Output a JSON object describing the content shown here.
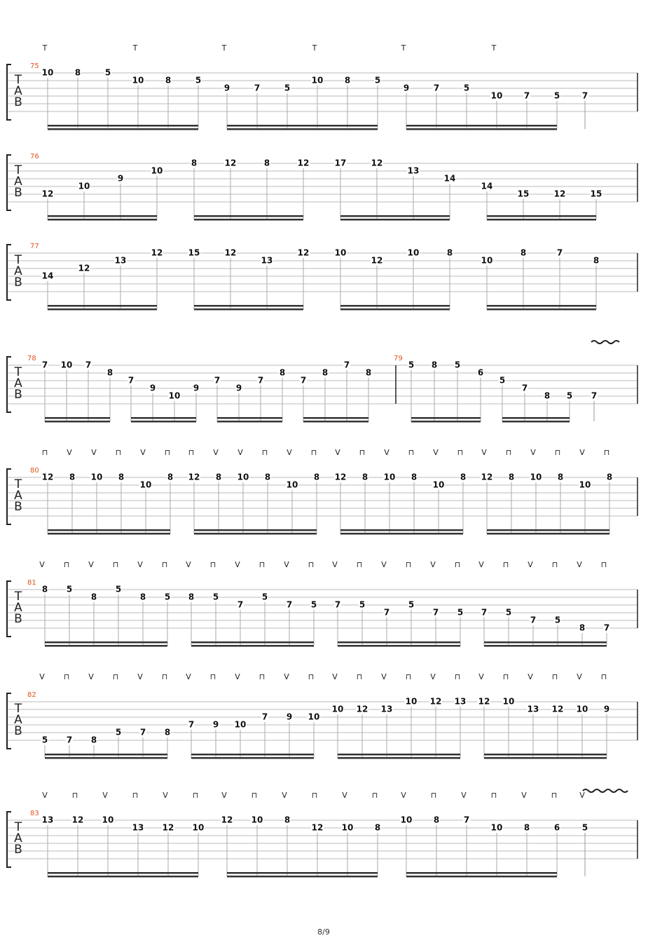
{
  "clef": [
    "T",
    "A",
    "B"
  ],
  "page_number": "8/9",
  "systems": [
    {
      "groups": [
        {
          "measure": "75",
          "notes": [
            {
              "fret": "10",
              "string": 1,
              "above": "T"
            },
            {
              "fret": "8",
              "string": 1
            },
            {
              "fret": "5",
              "string": 1
            },
            {
              "fret": "10",
              "string": 2,
              "above": "T"
            },
            {
              "fret": "8",
              "string": 2
            },
            {
              "fret": "5",
              "string": 2
            }
          ]
        },
        {
          "notes": [
            {
              "fret": "9",
              "string": 3,
              "above": "T"
            },
            {
              "fret": "7",
              "string": 3
            },
            {
              "fret": "5",
              "string": 3
            },
            {
              "fret": "10",
              "string": 2,
              "above": "T"
            },
            {
              "fret": "8",
              "string": 2
            },
            {
              "fret": "5",
              "string": 2
            }
          ]
        },
        {
          "notes": [
            {
              "fret": "9",
              "string": 3,
              "above": "T"
            },
            {
              "fret": "7",
              "string": 3
            },
            {
              "fret": "5",
              "string": 3
            },
            {
              "fret": "10",
              "string": 4,
              "above": "T"
            },
            {
              "fret": "7",
              "string": 4
            },
            {
              "fret": "5",
              "string": 4
            }
          ]
        },
        {
          "notes": [
            {
              "fret": "7",
              "string": 4
            }
          ]
        }
      ]
    },
    {
      "groups": [
        {
          "measure": "76",
          "notes": [
            {
              "fret": "12",
              "string": 5
            },
            {
              "fret": "10",
              "string": 4
            },
            {
              "fret": "9",
              "string": 3
            },
            {
              "fret": "10",
              "string": 2
            }
          ]
        },
        {
          "notes": [
            {
              "fret": "8",
              "string": 1
            },
            {
              "fret": "12",
              "string": 1
            },
            {
              "fret": "8",
              "string": 1
            },
            {
              "fret": "12",
              "string": 1
            }
          ]
        },
        {
          "notes": [
            {
              "fret": "17",
              "string": 1
            },
            {
              "fret": "12",
              "string": 1
            },
            {
              "fret": "13",
              "string": 2
            },
            {
              "fret": "14",
              "string": 3
            }
          ]
        },
        {
          "notes": [
            {
              "fret": "14",
              "string": 4
            },
            {
              "fret": "15",
              "string": 5
            },
            {
              "fret": "12",
              "string": 5
            },
            {
              "fret": "15",
              "string": 5
            }
          ]
        }
      ]
    },
    {
      "groups": [
        {
          "measure": "77",
          "notes": [
            {
              "fret": "14",
              "string": 4
            },
            {
              "fret": "12",
              "string": 3
            },
            {
              "fret": "13",
              "string": 2
            },
            {
              "fret": "12",
              "string": 1
            }
          ]
        },
        {
          "notes": [
            {
              "fret": "15",
              "string": 1
            },
            {
              "fret": "12",
              "string": 1
            },
            {
              "fret": "13",
              "string": 2
            },
            {
              "fret": "12",
              "string": 1
            }
          ]
        },
        {
          "notes": [
            {
              "fret": "10",
              "string": 1
            },
            {
              "fret": "12",
              "string": 2
            },
            {
              "fret": "10",
              "string": 1
            },
            {
              "fret": "8",
              "string": 1
            }
          ]
        },
        {
          "notes": [
            {
              "fret": "10",
              "string": 2
            },
            {
              "fret": "8",
              "string": 1
            },
            {
              "fret": "7",
              "string": 1
            },
            {
              "fret": "8",
              "string": 2
            }
          ]
        }
      ]
    },
    {
      "groups": [
        {
          "measure": "78",
          "notes": [
            {
              "fret": "7",
              "string": 1
            },
            {
              "fret": "10",
              "string": 1
            },
            {
              "fret": "7",
              "string": 1
            },
            {
              "fret": "8",
              "string": 2
            }
          ]
        },
        {
          "notes": [
            {
              "fret": "7",
              "string": 3
            },
            {
              "fret": "9",
              "string": 4
            },
            {
              "fret": "10",
              "string": 5
            },
            {
              "fret": "9",
              "string": 4
            }
          ]
        },
        {
          "notes": [
            {
              "fret": "7",
              "string": 3
            },
            {
              "fret": "9",
              "string": 4
            },
            {
              "fret": "7",
              "string": 3
            },
            {
              "fret": "8",
              "string": 2
            }
          ]
        },
        {
          "notes": [
            {
              "fret": "7",
              "string": 3
            },
            {
              "fret": "8",
              "string": 2
            },
            {
              "fret": "7",
              "string": 1
            },
            {
              "fret": "8",
              "string": 2
            }
          ]
        },
        {
          "measure": "79",
          "notes": [
            {
              "fret": "5",
              "string": 1
            },
            {
              "fret": "8",
              "string": 1
            },
            {
              "fret": "5",
              "string": 1
            },
            {
              "fret": "6",
              "string": 2
            }
          ]
        },
        {
          "notes": [
            {
              "fret": "5",
              "string": 3
            },
            {
              "fret": "7",
              "string": 4
            },
            {
              "fret": "8",
              "string": 5
            },
            {
              "fret": "5",
              "string": 5
            }
          ]
        },
        {
          "notes": [
            {
              "fret": "7",
              "string": 5
            }
          ]
        }
      ]
    },
    {
      "groups": [
        {
          "measure": "80",
          "notes": [
            {
              "fret": "12",
              "string": 1,
              "above": "⊓"
            },
            {
              "fret": "8",
              "string": 1,
              "above": "V"
            },
            {
              "fret": "10",
              "string": 1,
              "above": "V"
            },
            {
              "fret": "8",
              "string": 1,
              "above": "⊓"
            },
            {
              "fret": "10",
              "string": 2,
              "above": "V"
            },
            {
              "fret": "8",
              "string": 1,
              "above": "⊓"
            }
          ]
        },
        {
          "notes": [
            {
              "fret": "12",
              "string": 1,
              "above": "⊓"
            },
            {
              "fret": "8",
              "string": 1,
              "above": "V"
            },
            {
              "fret": "10",
              "string": 1,
              "above": "V"
            },
            {
              "fret": "8",
              "string": 1,
              "above": "⊓"
            },
            {
              "fret": "10",
              "string": 2,
              "above": "V"
            },
            {
              "fret": "8",
              "string": 1,
              "above": "⊓"
            }
          ]
        },
        {
          "notes": [
            {
              "fret": "12",
              "string": 1,
              "above": "V"
            },
            {
              "fret": "8",
              "string": 1,
              "above": "⊓"
            },
            {
              "fret": "10",
              "string": 1,
              "above": "V"
            },
            {
              "fret": "8",
              "string": 1,
              "above": "⊓"
            },
            {
              "fret": "10",
              "string": 2,
              "above": "V"
            },
            {
              "fret": "8",
              "string": 1,
              "above": "⊓"
            }
          ]
        },
        {
          "notes": [
            {
              "fret": "12",
              "string": 1,
              "above": "V"
            },
            {
              "fret": "8",
              "string": 1,
              "above": "⊓"
            },
            {
              "fret": "10",
              "string": 1,
              "above": "V"
            },
            {
              "fret": "8",
              "string": 1,
              "above": "⊓"
            },
            {
              "fret": "10",
              "string": 2,
              "above": "V"
            },
            {
              "fret": "8",
              "string": 1,
              "above": "⊓"
            }
          ]
        }
      ]
    },
    {
      "groups": [
        {
          "measure": "81",
          "notes": [
            {
              "fret": "8",
              "string": 1,
              "above": "V"
            },
            {
              "fret": "5",
              "string": 1,
              "above": "⊓"
            },
            {
              "fret": "8",
              "string": 2,
              "above": "V"
            },
            {
              "fret": "5",
              "string": 1,
              "above": "⊓"
            },
            {
              "fret": "8",
              "string": 2,
              "above": "V"
            },
            {
              "fret": "5",
              "string": 2,
              "above": "⊓"
            }
          ]
        },
        {
          "notes": [
            {
              "fret": "8",
              "string": 2,
              "above": "V"
            },
            {
              "fret": "5",
              "string": 2,
              "above": "⊓"
            },
            {
              "fret": "7",
              "string": 3,
              "above": "V"
            },
            {
              "fret": "5",
              "string": 2,
              "above": "⊓"
            },
            {
              "fret": "7",
              "string": 3,
              "above": "V"
            },
            {
              "fret": "5",
              "string": 3,
              "above": "⊓"
            }
          ]
        },
        {
          "notes": [
            {
              "fret": "7",
              "string": 3,
              "above": "V"
            },
            {
              "fret": "5",
              "string": 3,
              "above": "⊓"
            },
            {
              "fret": "7",
              "string": 4,
              "above": "V"
            },
            {
              "fret": "5",
              "string": 3,
              "above": "⊓"
            },
            {
              "fret": "7",
              "string": 4,
              "above": "V"
            },
            {
              "fret": "5",
              "string": 4,
              "above": "⊓"
            }
          ]
        },
        {
          "notes": [
            {
              "fret": "7",
              "string": 4,
              "above": "V"
            },
            {
              "fret": "5",
              "string": 4,
              "above": "⊓"
            },
            {
              "fret": "7",
              "string": 5,
              "above": "V"
            },
            {
              "fret": "5",
              "string": 5,
              "above": "⊓"
            },
            {
              "fret": "8",
              "string": 6,
              "above": "V"
            },
            {
              "fret": "7",
              "string": 6,
              "above": "⊓"
            }
          ]
        }
      ]
    },
    {
      "groups": [
        {
          "measure": "82",
          "notes": [
            {
              "fret": "5",
              "string": 6,
              "above": "V"
            },
            {
              "fret": "7",
              "string": 6,
              "above": "⊓"
            },
            {
              "fret": "8",
              "string": 6,
              "above": "V"
            },
            {
              "fret": "5",
              "string": 5,
              "above": "⊓"
            },
            {
              "fret": "7",
              "string": 5,
              "above": "V"
            },
            {
              "fret": "8",
              "string": 5,
              "above": "⊓"
            }
          ]
        },
        {
          "notes": [
            {
              "fret": "7",
              "string": 4,
              "above": "V"
            },
            {
              "fret": "9",
              "string": 4,
              "above": "⊓"
            },
            {
              "fret": "10",
              "string": 4,
              "above": "V"
            },
            {
              "fret": "7",
              "string": 3,
              "above": "⊓"
            },
            {
              "fret": "9",
              "string": 3,
              "above": "V"
            },
            {
              "fret": "10",
              "string": 3,
              "above": "⊓"
            }
          ]
        },
        {
          "notes": [
            {
              "fret": "10",
              "string": 2,
              "above": "V"
            },
            {
              "fret": "12",
              "string": 2,
              "above": "⊓"
            },
            {
              "fret": "13",
              "string": 2,
              "above": "V"
            },
            {
              "fret": "10",
              "string": 1,
              "above": "⊓"
            },
            {
              "fret": "12",
              "string": 1,
              "above": "V"
            },
            {
              "fret": "13",
              "string": 1,
              "above": "⊓"
            }
          ]
        },
        {
          "notes": [
            {
              "fret": "12",
              "string": 1,
              "above": "V"
            },
            {
              "fret": "10",
              "string": 1,
              "above": "⊓"
            },
            {
              "fret": "13",
              "string": 2,
              "above": "V"
            },
            {
              "fret": "12",
              "string": 2,
              "above": "⊓"
            },
            {
              "fret": "10",
              "string": 2,
              "above": "V"
            },
            {
              "fret": "9",
              "string": 2,
              "above": "⊓"
            }
          ]
        }
      ]
    },
    {
      "groups": [
        {
          "measure": "83",
          "notes": [
            {
              "fret": "13",
              "string": 1,
              "above": "V"
            },
            {
              "fret": "12",
              "string": 1,
              "above": "⊓"
            },
            {
              "fret": "10",
              "string": 1,
              "above": "V"
            },
            {
              "fret": "13",
              "string": 2,
              "above": "⊓"
            },
            {
              "fret": "12",
              "string": 2,
              "above": "V"
            },
            {
              "fret": "10",
              "string": 2,
              "above": "⊓"
            }
          ]
        },
        {
          "notes": [
            {
              "fret": "12",
              "string": 1,
              "above": "V"
            },
            {
              "fret": "10",
              "string": 1,
              "above": "⊓"
            },
            {
              "fret": "8",
              "string": 1,
              "above": "V"
            },
            {
              "fret": "12",
              "string": 2,
              "above": "⊓"
            },
            {
              "fret": "10",
              "string": 2,
              "above": "V"
            },
            {
              "fret": "8",
              "string": 2,
              "above": "⊓"
            }
          ]
        },
        {
          "notes": [
            {
              "fret": "10",
              "string": 1,
              "above": "V"
            },
            {
              "fret": "8",
              "string": 1,
              "above": "⊓"
            },
            {
              "fret": "7",
              "string": 1,
              "above": "V"
            },
            {
              "fret": "10",
              "string": 2,
              "above": "⊓"
            },
            {
              "fret": "8",
              "string": 2,
              "above": "V"
            },
            {
              "fret": "6",
              "string": 2,
              "above": "⊓"
            }
          ]
        },
        {
          "notes": [
            {
              "fret": "5",
              "string": 2,
              "above": "V"
            }
          ]
        }
      ]
    }
  ]
}
